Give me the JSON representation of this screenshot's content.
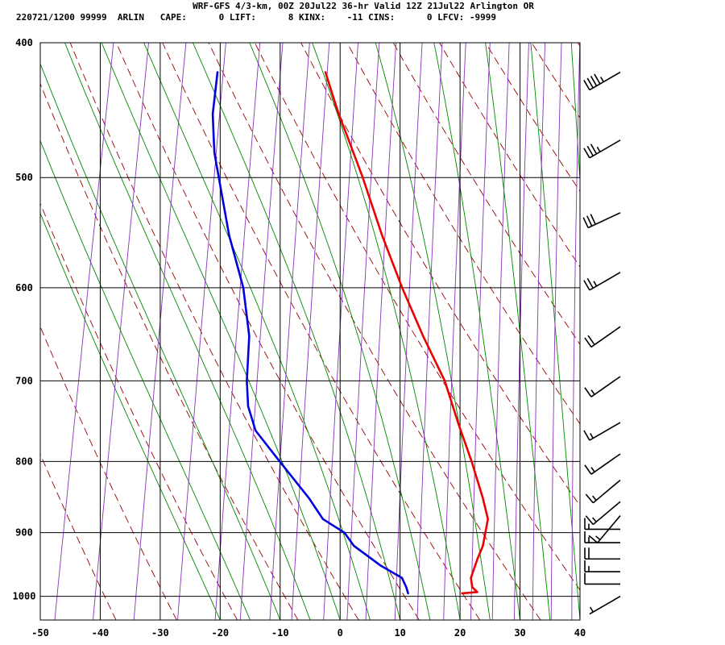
{
  "header": {
    "title": "WRF-GFS 4/3-km, 00Z 20Jul22 36-hr Valid 12Z 21Jul22 Arlington OR",
    "stats": "220721/1200 99999  ARLIN   CAPE:      0 LIFT:      8 KINX:    -11 CINS:      0 LFCV: -9999"
  },
  "colors": {
    "temperature": "#ee0000",
    "dewpoint": "#0000dd",
    "isotherm": "#000000",
    "dry_adiabat": "#990000",
    "moist_adiabat": "#008800",
    "mixing_ratio": "#8833bb",
    "wind_barb": "#000000"
  },
  "chart_data": {
    "type": "line",
    "chart_kind": "skew-T log-P sounding",
    "x_axis": {
      "min": -50,
      "max": 40,
      "ticks": [
        -50,
        -40,
        -30,
        -20,
        -10,
        0,
        10,
        20,
        30,
        40
      ],
      "ticklabels": [
        "-50",
        "-40",
        "-30",
        "-20",
        "-10",
        "0",
        "10",
        "20",
        "30",
        "40"
      ]
    },
    "y_axis": {
      "scale": "log",
      "min": 1040,
      "max": 400,
      "ticks": [
        400,
        500,
        600,
        700,
        800,
        900,
        1000
      ],
      "ticklabels": [
        "400",
        "500",
        "600",
        "700",
        "800",
        "900",
        "1000"
      ]
    },
    "grid": true,
    "series": [
      {
        "key": "temperature",
        "points": [
          {
            "p": 995,
            "t": 19.5
          },
          {
            "p": 993,
            "t": 22
          },
          {
            "p": 985,
            "t": 21
          },
          {
            "p": 970,
            "t": 20.5
          },
          {
            "p": 940,
            "t": 21
          },
          {
            "p": 920,
            "t": 21.5
          },
          {
            "p": 900,
            "t": 21.5
          },
          {
            "p": 880,
            "t": 21.5
          },
          {
            "p": 850,
            "t": 20
          },
          {
            "p": 800,
            "t": 17
          },
          {
            "p": 750,
            "t": 13.5
          },
          {
            "p": 700,
            "t": 10
          },
          {
            "p": 650,
            "t": 5
          },
          {
            "p": 600,
            "t": 0
          },
          {
            "p": 550,
            "t": -5
          },
          {
            "p": 500,
            "t": -10
          },
          {
            "p": 470,
            "t": -13.5
          },
          {
            "p": 450,
            "t": -16
          },
          {
            "p": 420,
            "t": -19.5
          }
        ]
      },
      {
        "key": "dewpoint",
        "points": [
          {
            "p": 995,
            "t": 10.5
          },
          {
            "p": 985,
            "t": 10
          },
          {
            "p": 970,
            "t": 9
          },
          {
            "p": 950,
            "t": 5
          },
          {
            "p": 920,
            "t": 0
          },
          {
            "p": 900,
            "t": -2
          },
          {
            "p": 880,
            "t": -6
          },
          {
            "p": 850,
            "t": -9
          },
          {
            "p": 800,
            "t": -15
          },
          {
            "p": 760,
            "t": -20
          },
          {
            "p": 730,
            "t": -22
          },
          {
            "p": 700,
            "t": -23
          },
          {
            "p": 650,
            "t": -24
          },
          {
            "p": 600,
            "t": -26.5
          },
          {
            "p": 550,
            "t": -30.5
          },
          {
            "p": 500,
            "t": -34
          },
          {
            "p": 480,
            "t": -35.5
          },
          {
            "p": 470,
            "t": -36
          },
          {
            "p": 450,
            "t": -37
          },
          {
            "p": 420,
            "t": -37.5
          }
        ]
      }
    ],
    "wind_barbs": [
      {
        "p": 420,
        "dir": 240,
        "kt": 45
      },
      {
        "p": 470,
        "dir": 240,
        "kt": 35
      },
      {
        "p": 530,
        "dir": 245,
        "kt": 30
      },
      {
        "p": 585,
        "dir": 240,
        "kt": 25
      },
      {
        "p": 640,
        "dir": 235,
        "kt": 20
      },
      {
        "p": 695,
        "dir": 235,
        "kt": 15
      },
      {
        "p": 750,
        "dir": 240,
        "kt": 15
      },
      {
        "p": 790,
        "dir": 235,
        "kt": 15
      },
      {
        "p": 825,
        "dir": 230,
        "kt": 15
      },
      {
        "p": 855,
        "dir": 230,
        "kt": 15
      },
      {
        "p": 875,
        "dir": 220,
        "kt": 15
      },
      {
        "p": 895,
        "dir": 270,
        "kt": 15
      },
      {
        "p": 915,
        "dir": 270,
        "kt": 15
      },
      {
        "p": 940,
        "dir": 270,
        "kt": 20
      },
      {
        "p": 960,
        "dir": 270,
        "kt": 15
      },
      {
        "p": 980,
        "dir": 270,
        "kt": 10
      },
      {
        "p": 1000,
        "dir": 240,
        "kt": 5
      }
    ]
  }
}
